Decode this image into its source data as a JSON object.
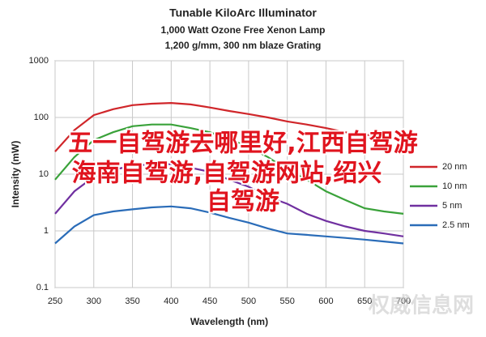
{
  "chart_data": {
    "type": "line",
    "title": "Tunable KiloArc Illuminator",
    "subtitle": [
      "1,000 Watt Ozone Free Xenon Lamp",
      "1,200 g/mm, 300 nm blaze Grating"
    ],
    "x_label": "Wavelength (nm)",
    "y_label": "Intensity (mW)",
    "x": [
      250,
      275,
      300,
      325,
      350,
      375,
      400,
      425,
      450,
      475,
      500,
      525,
      550,
      575,
      600,
      625,
      650,
      675,
      700
    ],
    "series": [
      {
        "name": "20 nm",
        "color": "#d0262a",
        "values": [
          25,
          60,
          110,
          140,
          165,
          175,
          180,
          170,
          150,
          130,
          115,
          100,
          85,
          75,
          65,
          55,
          50,
          45,
          40
        ]
      },
      {
        "name": "10 nm",
        "color": "#3aa23a",
        "values": [
          8,
          20,
          40,
          55,
          70,
          75,
          75,
          65,
          55,
          42,
          30,
          20,
          12,
          8,
          5,
          3.5,
          2.5,
          2.2,
          2
        ]
      },
      {
        "name": "5 nm",
        "color": "#7030a0",
        "values": [
          2,
          5,
          9,
          12,
          14,
          15,
          15,
          13,
          11,
          8,
          6,
          4,
          3,
          2,
          1.5,
          1.2,
          1,
          0.9,
          0.8
        ]
      },
      {
        "name": "2.5 nm",
        "color": "#2a6cb8",
        "values": [
          0.6,
          1.2,
          1.9,
          2.2,
          2.4,
          2.6,
          2.7,
          2.5,
          2.1,
          1.7,
          1.4,
          1.1,
          0.9,
          0.85,
          0.8,
          0.75,
          0.7,
          0.65,
          0.6
        ]
      }
    ],
    "xlim": [
      250,
      700
    ],
    "xticks": [
      250,
      300,
      350,
      400,
      450,
      500,
      550,
      600,
      650,
      700
    ],
    "ylim": [
      0.1,
      1000
    ],
    "yticks": [
      0.1,
      1,
      10,
      100,
      1000
    ],
    "log_y": true,
    "grid": true,
    "legend": "right"
  },
  "overlay_text": [
    "五一自驾游去哪里好,江西自驾游",
    "海南自驾游,自驾游网站,绍兴",
    "自驾游"
  ],
  "watermark": "权威信息网"
}
